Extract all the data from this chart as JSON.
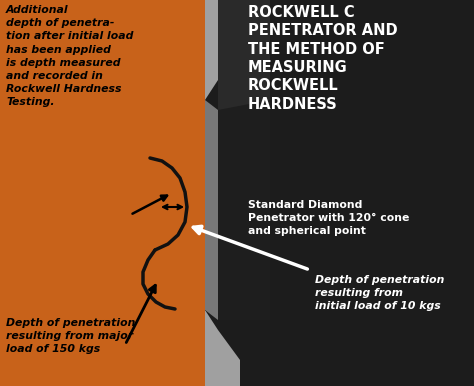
{
  "bg_color": "#c0bfbf",
  "orange_color": "#c8621a",
  "dark_color": "#1c1c1c",
  "gray_light": "#a0a0a0",
  "gray_mid": "#787878",
  "white": "#ffffff",
  "black": "#000000",
  "title_text": "ROCKWELL C\nPENETRATOR AND\nTHE METHOD OF\nMEASURING\nROCKWELL\nHARDNESS",
  "subtitle": "Standard Diamond\nPenetrator with 120° cone\nand spherical point",
  "text_top_left": "Additional\ndepth of penetra-\ntion after initial load\nhas been applied\nis depth measured\nand recorded in\nRockwell Hardness\nTesting.",
  "text_bottom_left": "Depth of penetration\nresulting from major\nload of 150 kgs",
  "text_right_arrow": "Depth of penetration\nresulting from\ninitial load of 10 kgs",
  "fig_w": 4.74,
  "fig_h": 3.86,
  "dpi": 100
}
